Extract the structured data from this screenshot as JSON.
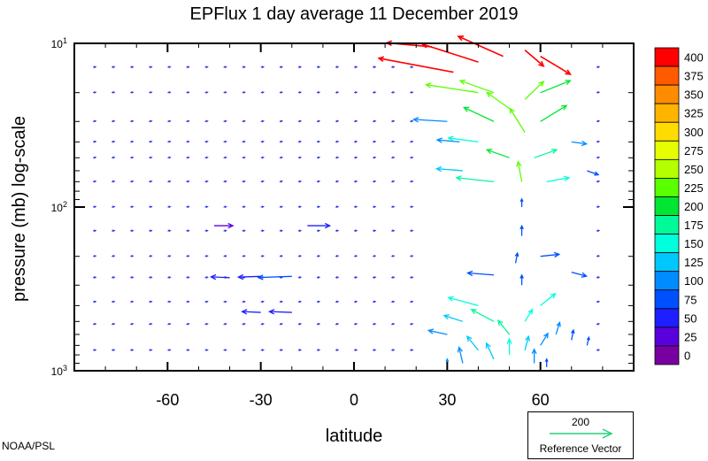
{
  "chart_data": {
    "type": "vector-field",
    "title": "EPFlux  1 day average  11 December 2019",
    "xlabel": "latitude",
    "ylabel": "pressure (mb)  log-scale",
    "xlim": [
      -90,
      90
    ],
    "ylim": [
      1000,
      10
    ],
    "yscale": "log",
    "x_ticks": [
      -60,
      -30,
      0,
      30,
      60
    ],
    "x_tick_labels": [
      "-60",
      "-30",
      "0",
      "30",
      "60"
    ],
    "y_ticks": [
      {
        "value": 10,
        "base": "10",
        "exp": "1"
      },
      {
        "value": 100,
        "base": "10",
        "exp": "2"
      },
      {
        "value": 1000,
        "base": "10",
        "exp": "3"
      }
    ],
    "colorbar": {
      "levels": [
        "400",
        "375",
        "350",
        "325",
        "300",
        "275",
        "250",
        "225",
        "200",
        "175",
        "150",
        "125",
        "100",
        "75",
        "50",
        "25",
        "0"
      ],
      "colors": [
        "#ff0000",
        "#ff5a00",
        "#ff8c00",
        "#ffb400",
        "#ffdc00",
        "#e6ff00",
        "#b4ff00",
        "#5aff00",
        "#00e632",
        "#00fa9a",
        "#00ffdc",
        "#00c8ff",
        "#008cff",
        "#0050ff",
        "#1e1eff",
        "#5a00dc",
        "#7800a0"
      ]
    },
    "reference_vector": {
      "value": "200",
      "label": "Reference Vector",
      "color": "#22d27a"
    },
    "vectors": [
      {
        "lat": 32,
        "p": 15,
        "u": -20,
        "v": 0.35,
        "mag": 400
      },
      {
        "lat": 40,
        "p": 13,
        "u": -15,
        "v": 0.45,
        "mag": 400
      },
      {
        "lat": 48,
        "p": 12,
        "u": -12,
        "v": 0.5,
        "mag": 400
      },
      {
        "lat": 55,
        "p": 11,
        "u": 5,
        "v": -0.4,
        "mag": 400
      },
      {
        "lat": 60,
        "p": 12,
        "u": 8,
        "v": -0.45,
        "mag": 400
      },
      {
        "lat": 25,
        "p": 10.5,
        "u": -12,
        "v": 0.1,
        "mag": 400
      },
      {
        "lat": 40,
        "p": 20,
        "u": -14,
        "v": 0.2,
        "mag": 240
      },
      {
        "lat": 45,
        "p": 20,
        "u": -9,
        "v": 0.3,
        "mag": 240
      },
      {
        "lat": 50,
        "p": 25,
        "u": -6,
        "v": 0.4,
        "mag": 230
      },
      {
        "lat": 55,
        "p": 22,
        "u": 5,
        "v": 0.45,
        "mag": 230
      },
      {
        "lat": 60,
        "p": 20,
        "u": 8,
        "v": 0.3,
        "mag": 220
      },
      {
        "lat": 45,
        "p": 30,
        "u": -8,
        "v": 0.35,
        "mag": 200
      },
      {
        "lat": 55,
        "p": 35,
        "u": -4,
        "v": 0.6,
        "mag": 230
      },
      {
        "lat": 60,
        "p": 30,
        "u": 7,
        "v": 0.4,
        "mag": 220
      },
      {
        "lat": 50,
        "p": 50,
        "u": -6,
        "v": 0.2,
        "mag": 200
      },
      {
        "lat": 58,
        "p": 50,
        "u": 6,
        "v": 0.2,
        "mag": 190
      },
      {
        "lat": 54,
        "p": 70,
        "u": -1,
        "v": 0.5,
        "mag": 230
      },
      {
        "lat": 45,
        "p": 70,
        "u": -10,
        "v": 0.1,
        "mag": 180
      },
      {
        "lat": 62,
        "p": 70,
        "u": 6,
        "v": 0.1,
        "mag": 170
      },
      {
        "lat": 40,
        "p": 40,
        "u": -8,
        "v": 0.1,
        "mag": 160
      },
      {
        "lat": 30,
        "p": 30,
        "u": -9,
        "v": 0.05,
        "mag": 100
      },
      {
        "lat": 34,
        "p": 40,
        "u": -6,
        "v": 0.05,
        "mag": 120
      },
      {
        "lat": 35,
        "p": 60,
        "u": -7,
        "v": 0.05,
        "mag": 140
      },
      {
        "lat": 70,
        "p": 40,
        "u": 4,
        "v": -0.05,
        "mag": 110
      },
      {
        "lat": 75,
        "p": 60,
        "u": 3,
        "v": -0.1,
        "mag": 90
      },
      {
        "lat": 54,
        "p": 100,
        "u": 0,
        "v": 0.2,
        "mag": 80
      },
      {
        "lat": 54,
        "p": 150,
        "u": 0,
        "v": 0.25,
        "mag": 90
      },
      {
        "lat": 52,
        "p": 220,
        "u": 0.5,
        "v": 0.25,
        "mag": 90
      },
      {
        "lat": 54,
        "p": 300,
        "u": 0,
        "v": 0.25,
        "mag": 90
      },
      {
        "lat": 60,
        "p": 200,
        "u": 5,
        "v": 0.05,
        "mag": 90
      },
      {
        "lat": 70,
        "p": 250,
        "u": 4,
        "v": -0.1,
        "mag": 90
      },
      {
        "lat": 45,
        "p": 260,
        "u": -7,
        "v": 0.05,
        "mag": 80
      },
      {
        "lat": -20,
        "p": 265,
        "u": -9,
        "v": -0.03,
        "mag": 90
      },
      {
        "lat": -30,
        "p": 265,
        "u": -6,
        "v": -0.02,
        "mag": 60
      },
      {
        "lat": -40,
        "p": 270,
        "u": -5,
        "v": 0.02,
        "mag": 60
      },
      {
        "lat": -15,
        "p": 130,
        "u": 6,
        "v": 0.0,
        "mag": 50
      },
      {
        "lat": -45,
        "p": 130,
        "u": 5,
        "v": 0.0,
        "mag": 40
      },
      {
        "lat": 40,
        "p": 400,
        "u": -8,
        "v": 0.2,
        "mag": 170
      },
      {
        "lat": 45,
        "p": 500,
        "u": -6,
        "v": 0.3,
        "mag": 190
      },
      {
        "lat": 50,
        "p": 600,
        "u": -3,
        "v": 0.35,
        "mag": 180
      },
      {
        "lat": 55,
        "p": 500,
        "u": 2,
        "v": 0.3,
        "mag": 160
      },
      {
        "lat": 60,
        "p": 400,
        "u": 4,
        "v": 0.3,
        "mag": 150
      },
      {
        "lat": 35,
        "p": 500,
        "u": -5,
        "v": 0.15,
        "mag": 130
      },
      {
        "lat": 30,
        "p": 600,
        "u": -5,
        "v": 0.1,
        "mag": 120
      },
      {
        "lat": 40,
        "p": 750,
        "u": -3,
        "v": 0.35,
        "mag": 140
      },
      {
        "lat": 45,
        "p": 850,
        "u": -2,
        "v": 0.4,
        "mag": 130
      },
      {
        "lat": 50,
        "p": 800,
        "u": 0,
        "v": 0.4,
        "mag": 150
      },
      {
        "lat": 55,
        "p": 750,
        "u": 1,
        "v": 0.35,
        "mag": 140
      },
      {
        "lat": 60,
        "p": 700,
        "u": 2,
        "v": 0.3,
        "mag": 120
      },
      {
        "lat": 65,
        "p": 600,
        "u": 1,
        "v": 0.3,
        "mag": 100
      },
      {
        "lat": 70,
        "p": 650,
        "u": 0.5,
        "v": 0.25,
        "mag": 90
      },
      {
        "lat": 75,
        "p": 700,
        "u": 0.5,
        "v": 0.2,
        "mag": 80
      },
      {
        "lat": 35,
        "p": 900,
        "u": -1,
        "v": 0.4,
        "mag": 120
      },
      {
        "lat": 30,
        "p": 950,
        "u": 0,
        "v": 0.2,
        "mag": 110
      },
      {
        "lat": 58,
        "p": 900,
        "u": 0,
        "v": 0.35,
        "mag": 110
      },
      {
        "lat": 62,
        "p": 950,
        "u": 0,
        "v": 0.2,
        "mag": 90
      },
      {
        "lat": -20,
        "p": 440,
        "u": -6,
        "v": 0.02,
        "mag": 70
      },
      {
        "lat": -30,
        "p": 440,
        "u": -5,
        "v": 0.02,
        "mag": 60
      }
    ]
  },
  "credit": "NOAA/PSL"
}
